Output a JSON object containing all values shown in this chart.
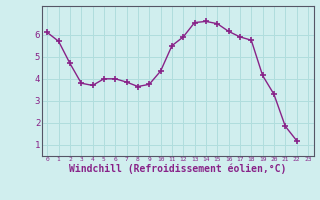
{
  "x": [
    0,
    1,
    2,
    3,
    4,
    5,
    6,
    7,
    8,
    9,
    10,
    11,
    12,
    13,
    14,
    15,
    16,
    17,
    18,
    19,
    20,
    21,
    22,
    23
  ],
  "y": [
    6.1,
    5.7,
    4.7,
    3.8,
    3.7,
    4.0,
    4.0,
    3.85,
    3.65,
    3.75,
    4.35,
    5.5,
    5.9,
    6.55,
    6.6,
    6.5,
    6.15,
    5.9,
    5.75,
    4.15,
    3.3,
    1.85,
    1.2,
    null
  ],
  "line_color": "#882288",
  "marker": "+",
  "marker_size": 4,
  "background_color": "#d0eeee",
  "grid_color": "#b0dddd",
  "xlabel": "Windchill (Refroidissement éolien,°C)",
  "xlabel_fontsize": 7,
  "ytick_labels": [
    "1",
    "2",
    "3",
    "4",
    "5",
    "6"
  ],
  "ytick_vals": [
    1,
    2,
    3,
    4,
    5,
    6
  ],
  "xtick_vals": [
    0,
    1,
    2,
    3,
    4,
    5,
    6,
    7,
    8,
    9,
    10,
    11,
    12,
    13,
    14,
    15,
    16,
    17,
    18,
    19,
    20,
    21,
    22,
    23
  ],
  "xtick_labels": [
    "0",
    "1",
    "2",
    "3",
    "4",
    "5",
    "6",
    "7",
    "8",
    "9",
    "10",
    "11",
    "12",
    "13",
    "14",
    "15",
    "16",
    "17",
    "18",
    "19",
    "20",
    "21",
    "22",
    "23"
  ],
  "ylim": [
    0.5,
    7.3
  ],
  "xlim": [
    -0.5,
    23.5
  ],
  "spine_color": "#555566"
}
